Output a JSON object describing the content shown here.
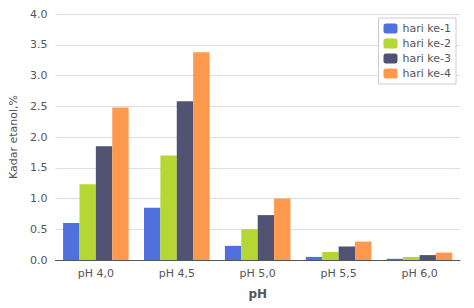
{
  "chart_data": {
    "type": "bar",
    "xlabel": "pH",
    "ylabel": "Kadar etanol,%",
    "categories": [
      "pH 4,0",
      "pH 4,5",
      "pH 5,0",
      "pH 5,5",
      "pH 6,0"
    ],
    "series": [
      {
        "name": "hari ke-1",
        "values": [
          0.6,
          0.85,
          0.23,
          0.05,
          0.02
        ]
      },
      {
        "name": "hari ke-2",
        "values": [
          1.23,
          1.7,
          0.5,
          0.13,
          0.05
        ]
      },
      {
        "name": "hari ke-3",
        "values": [
          1.85,
          2.58,
          0.73,
          0.22,
          0.08
        ]
      },
      {
        "name": "hari ke-4",
        "values": [
          2.48,
          3.38,
          1.0,
          0.3,
          0.12
        ]
      }
    ],
    "ylim": [
      0,
      4
    ],
    "yticks": [
      {
        "value": 0,
        "label": "0.0"
      },
      0.5,
      {
        "value": 1,
        "label": "1.0"
      },
      1.5,
      {
        "value": 2,
        "label": "2.0"
      },
      2.5,
      {
        "value": 3,
        "label": "3.0"
      },
      3.5,
      {
        "value": 4,
        "label": "4.0"
      }
    ],
    "grid": true,
    "legend": "upper right"
  }
}
